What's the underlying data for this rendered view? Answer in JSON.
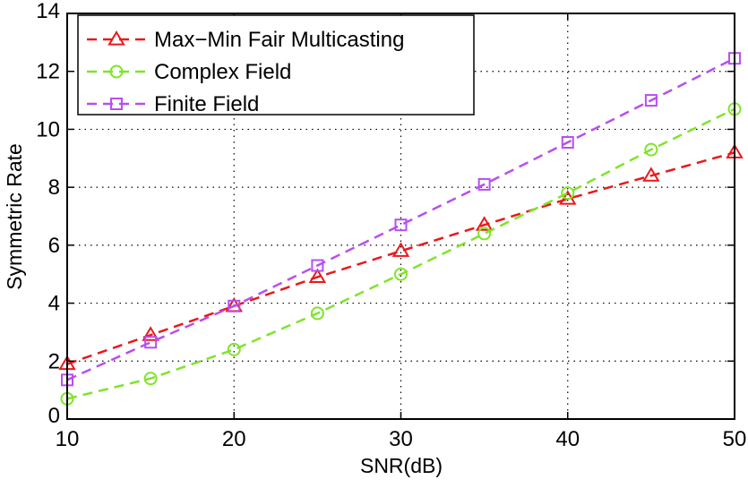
{
  "chart_data": {
    "type": "line",
    "title": "",
    "xlabel": "SNR(dB)",
    "ylabel": "Symmetric Rate",
    "xlim": [
      10,
      50
    ],
    "ylim": [
      0,
      14
    ],
    "x_ticks": [
      "10",
      "20",
      "30",
      "40",
      "50"
    ],
    "y_ticks": [
      "0",
      "2",
      "4",
      "6",
      "8",
      "10",
      "12",
      "14"
    ],
    "grid": true,
    "legend_position": "top-left",
    "x": [
      10,
      15,
      20,
      25,
      30,
      35,
      40,
      45,
      50
    ],
    "series": [
      {
        "name": "Max−Min Fair Multicasting",
        "color": "#e8191c",
        "marker": "triangle",
        "line_style": "dashed",
        "values": [
          1.9,
          2.9,
          3.9,
          4.9,
          5.8,
          6.7,
          7.6,
          8.4,
          9.2
        ]
      },
      {
        "name": "Complex Field",
        "color": "#7fe42a",
        "marker": "circle",
        "line_style": "dashed",
        "values": [
          0.7,
          1.4,
          2.4,
          3.65,
          5.0,
          6.4,
          7.8,
          9.3,
          10.7
        ]
      },
      {
        "name": "Finite Field",
        "color": "#b74ff0",
        "marker": "square",
        "line_style": "dashed",
        "values": [
          1.35,
          2.65,
          3.9,
          5.3,
          6.7,
          8.1,
          9.55,
          11.0,
          12.45
        ]
      }
    ]
  }
}
